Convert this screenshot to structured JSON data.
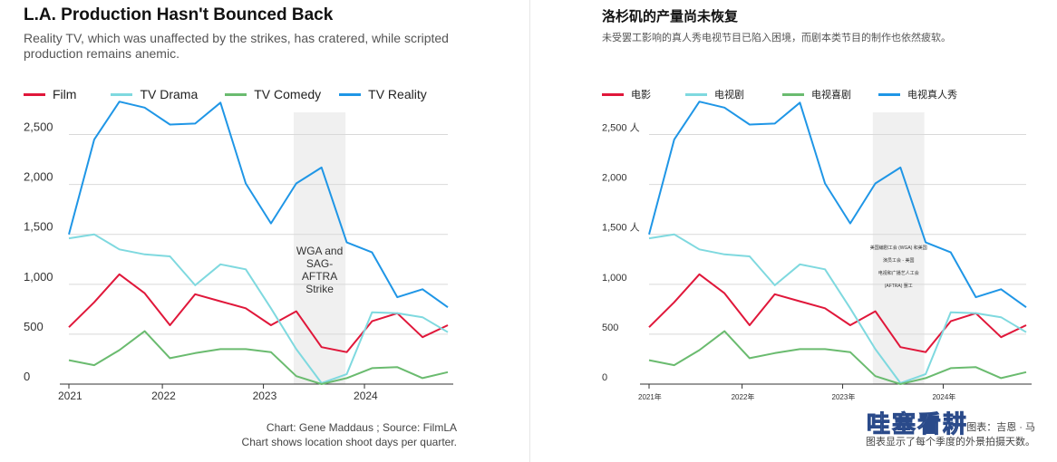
{
  "colors": {
    "Film": "#e0173a",
    "TV Drama": "#7fd9df",
    "TV Comedy": "#6abb6f",
    "TV Reality": "#1f96e6",
    "shade": "#f0f0f0",
    "grid": "#d9d9d9",
    "axis": "#333333"
  },
  "left": {
    "title": "L.A. Production Hasn't Bounced Back",
    "subtitle": "Reality TV, which was unaffected by the strikes, has cratered, while scripted production remains anemic.",
    "footer_line1": "Chart: Gene Maddaus ; Source: FilmLA",
    "footer_line2": "Chart shows location shoot days per quarter."
  },
  "right": {
    "title": "洛杉矶的产量尚未恢复",
    "subtitle": "未受罢工影响的真人秀电视节目已陷入困境，而剧本类节目的制作也依然疲软。",
    "footer_line1": "图表：吉恩 · 马",
    "footer_line2": "图表显示了每个季度的外景拍摄天数。",
    "watermark": "哇塞看耕"
  },
  "chart_data": [
    {
      "type": "line",
      "title": "L.A. Production Hasn't Bounced Back",
      "x_quarters": [
        "2021-Q1",
        "2021-Q2",
        "2021-Q3",
        "2021-Q4",
        "2022-Q1",
        "2022-Q2",
        "2022-Q3",
        "2022-Q4",
        "2023-Q1",
        "2023-Q2",
        "2023-Q3",
        "2023-Q4",
        "2024-Q1",
        "2024-Q2",
        "2024-Q3",
        "2024-Q4"
      ],
      "x_tick_labels": [
        "2021",
        "2022",
        "2023",
        "2024"
      ],
      "y_tick_labels": [
        "0",
        "500",
        "1,000",
        "1,500",
        "2,000",
        "2,500"
      ],
      "y_ticks": [
        0,
        500,
        1000,
        1500,
        2000,
        2500
      ],
      "ylim": [
        0,
        2850
      ],
      "grid": true,
      "legend_position": "top-left",
      "legend": [
        "Film",
        "TV Drama",
        "TV Comedy",
        "TV Reality"
      ],
      "series": [
        {
          "name": "Film",
          "values": [
            570,
            820,
            1100,
            910,
            590,
            900,
            830,
            760,
            590,
            730,
            370,
            320,
            630,
            710,
            470,
            590
          ]
        },
        {
          "name": "TV Drama",
          "values": [
            1460,
            1500,
            1350,
            1300,
            1280,
            990,
            1200,
            1150,
            760,
            350,
            10,
            100,
            720,
            710,
            670,
            520
          ]
        },
        {
          "name": "TV Comedy",
          "values": [
            240,
            190,
            340,
            530,
            260,
            310,
            350,
            350,
            320,
            80,
            0,
            60,
            160,
            170,
            60,
            120
          ]
        },
        {
          "name": "TV Reality",
          "values": [
            1500,
            2450,
            2830,
            2770,
            2600,
            2610,
            2820,
            2010,
            1610,
            2010,
            2170,
            1420,
            1320,
            870,
            950,
            770
          ]
        }
      ],
      "annotation": {
        "label_lines": [
          "WGA and",
          "SAG-",
          "AFTRA",
          "Strike"
        ],
        "x_start": "2023-Q2",
        "x_end": "2023-Q4"
      }
    },
    {
      "type": "line",
      "title": "洛杉矶的产量尚未恢复",
      "x_quarters": [
        "2021-Q1",
        "2021-Q2",
        "2021-Q3",
        "2021-Q4",
        "2022-Q1",
        "2022-Q2",
        "2022-Q3",
        "2022-Q4",
        "2023-Q1",
        "2023-Q2",
        "2023-Q3",
        "2023-Q4",
        "2024-Q1",
        "2024-Q2",
        "2024-Q3",
        "2024-Q4"
      ],
      "x_tick_labels": [
        "2021年",
        "2022年",
        "2023年",
        "2024年"
      ],
      "y_tick_labels": [
        "0",
        "500",
        "1,000",
        "1,500 人",
        "2,000",
        "2,500 人"
      ],
      "y_ticks": [
        0,
        500,
        1000,
        1500,
        2000,
        2500
      ],
      "ylim": [
        0,
        2850
      ],
      "grid": true,
      "legend_position": "top-left",
      "legend": [
        "电影",
        "电视剧",
        "电视喜剧",
        "电视真人秀"
      ],
      "series": [
        {
          "name": "电影",
          "values": [
            570,
            820,
            1100,
            910,
            590,
            900,
            830,
            760,
            590,
            730,
            370,
            320,
            630,
            710,
            470,
            590
          ]
        },
        {
          "name": "电视剧",
          "values": [
            1460,
            1500,
            1350,
            1300,
            1280,
            990,
            1200,
            1150,
            760,
            350,
            10,
            100,
            720,
            710,
            670,
            520
          ]
        },
        {
          "name": "电视喜剧",
          "values": [
            240,
            190,
            340,
            530,
            260,
            310,
            350,
            350,
            320,
            80,
            0,
            60,
            160,
            170,
            60,
            120
          ]
        },
        {
          "name": "电视真人秀",
          "values": [
            1500,
            2450,
            2830,
            2770,
            2600,
            2610,
            2820,
            2010,
            1610,
            2010,
            2170,
            1420,
            1320,
            870,
            950,
            770
          ]
        }
      ],
      "annotation": {
        "label_lines": [
          "美国编剧工会 (WGA) 和美国",
          "演员工会 - 美国",
          "电视和广播艺人工会",
          "(AFTRA) 罢工"
        ],
        "x_start": "2023-Q2",
        "x_end": "2023-Q4"
      }
    }
  ]
}
